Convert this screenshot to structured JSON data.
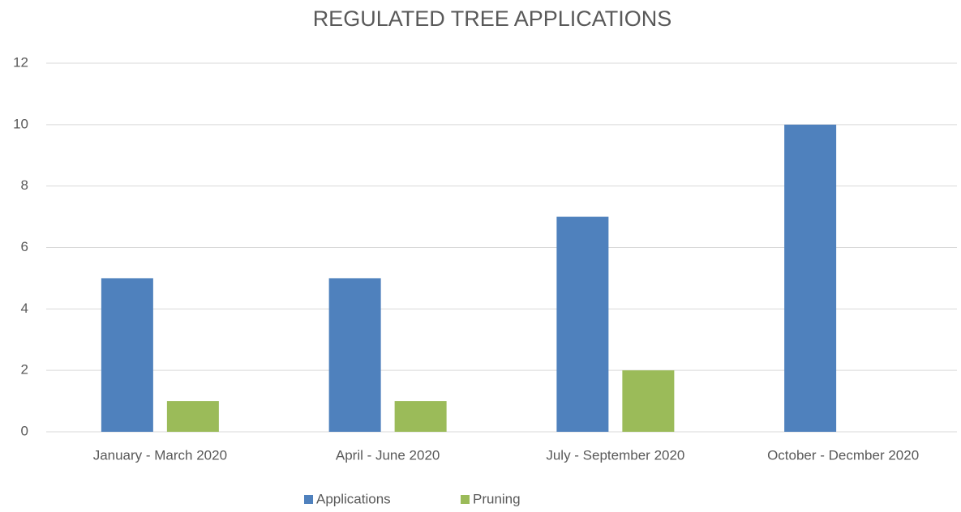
{
  "chart_data": {
    "type": "bar",
    "title": "REGULATED TREE APPLICATIONS",
    "categories": [
      "January - March 2020",
      "April - June 2020",
      "July - September 2020",
      "October - Decmber 2020"
    ],
    "series": [
      {
        "name": "Applications",
        "color": "#4f81bd",
        "values": [
          5,
          5,
          7,
          10
        ]
      },
      {
        "name": "Pruning",
        "color": "#9bbb59",
        "values": [
          1,
          1,
          2,
          0
        ]
      }
    ],
    "ylim": [
      0,
      12
    ],
    "yticks": [
      0,
      2,
      4,
      6,
      8,
      10,
      12
    ],
    "grid": true,
    "legend": "bottom"
  }
}
